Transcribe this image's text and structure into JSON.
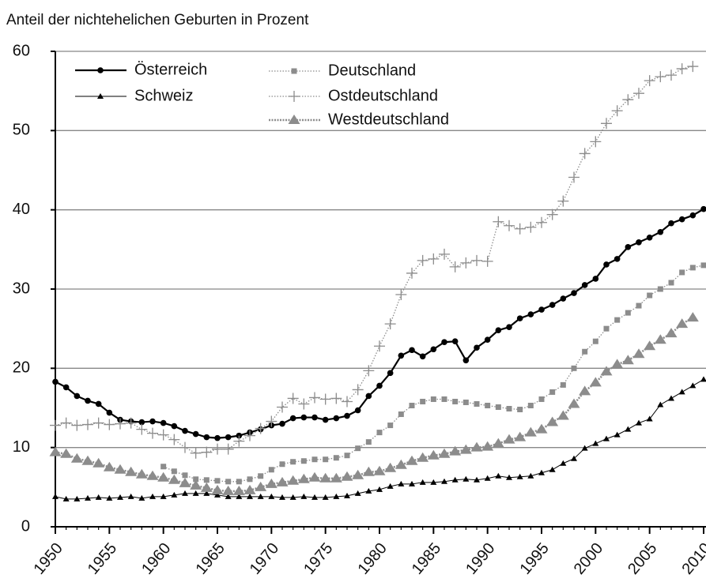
{
  "chart_data": {
    "type": "line",
    "title": "Anteil der nichtehelichen Geburten in Prozent",
    "x": [
      1950,
      1951,
      1952,
      1953,
      1954,
      1955,
      1956,
      1957,
      1958,
      1959,
      1960,
      1961,
      1962,
      1963,
      1964,
      1965,
      1966,
      1967,
      1968,
      1969,
      1970,
      1971,
      1972,
      1973,
      1974,
      1975,
      1976,
      1977,
      1978,
      1979,
      1980,
      1981,
      1982,
      1983,
      1984,
      1985,
      1986,
      1987,
      1988,
      1989,
      1990,
      1991,
      1992,
      1993,
      1994,
      1995,
      1996,
      1997,
      1998,
      1999,
      2000,
      2001,
      2002,
      2003,
      2004,
      2005,
      2006,
      2007,
      2008,
      2009,
      2010
    ],
    "xlim": [
      1950,
      2010
    ],
    "xticks": [
      1950,
      1955,
      1960,
      1965,
      1970,
      1975,
      1980,
      1985,
      1990,
      1995,
      2000,
      2005,
      2010
    ],
    "ylim": [
      0,
      60
    ],
    "yticks": [
      0,
      10,
      20,
      30,
      40,
      50,
      60
    ],
    "grid": true,
    "series": [
      {
        "name": "Österreich",
        "color": "#000000",
        "marker": "circle",
        "line": "solid",
        "values": [
          18.3,
          17.6,
          16.5,
          15.9,
          15.5,
          14.4,
          13.5,
          13.3,
          13.2,
          13.3,
          13.1,
          12.7,
          12.1,
          11.7,
          11.3,
          11.2,
          11.3,
          11.5,
          11.9,
          12.3,
          12.8,
          13.0,
          13.7,
          13.8,
          13.8,
          13.5,
          13.7,
          14.0,
          14.7,
          16.5,
          17.8,
          19.4,
          21.6,
          22.3,
          21.5,
          22.4,
          23.3,
          23.4,
          21.0,
          22.6,
          23.6,
          24.8,
          25.2,
          26.3,
          26.8,
          27.4,
          28.0,
          28.8,
          29.5,
          30.5,
          31.3,
          33.1,
          33.8,
          35.3,
          35.9,
          36.5,
          37.2,
          38.3,
          38.8,
          39.3,
          40.1
        ]
      },
      {
        "name": "Schweiz",
        "color": "#000000",
        "marker": "triangle",
        "line": "thin",
        "values": [
          3.8,
          3.5,
          3.5,
          3.6,
          3.7,
          3.6,
          3.7,
          3.8,
          3.6,
          3.8,
          3.8,
          4.0,
          4.2,
          4.2,
          4.2,
          4.0,
          3.8,
          3.8,
          3.8,
          3.8,
          3.8,
          3.7,
          3.7,
          3.8,
          3.7,
          3.7,
          3.8,
          3.9,
          4.2,
          4.5,
          4.7,
          5.1,
          5.4,
          5.4,
          5.6,
          5.6,
          5.7,
          5.9,
          6.0,
          5.9,
          6.1,
          6.4,
          6.2,
          6.3,
          6.4,
          6.8,
          7.2,
          8.0,
          8.6,
          9.9,
          10.5,
          11.1,
          11.6,
          12.3,
          13.1,
          13.6,
          15.4,
          16.2,
          17.0,
          17.8,
          18.6
        ]
      },
      {
        "name": "Deutschland",
        "color": "#8c8c8c",
        "marker": "square",
        "line": "dotted",
        "values": [
          null,
          null,
          null,
          null,
          null,
          null,
          null,
          null,
          null,
          null,
          7.6,
          7.0,
          6.5,
          6.0,
          5.9,
          5.8,
          5.7,
          5.7,
          6.0,
          6.4,
          7.2,
          7.9,
          8.2,
          8.3,
          8.5,
          8.5,
          8.7,
          9.0,
          9.9,
          10.7,
          11.9,
          12.8,
          14.2,
          15.3,
          15.8,
          16.1,
          16.1,
          15.8,
          15.7,
          15.5,
          15.3,
          15.1,
          14.9,
          14.8,
          15.3,
          16.1,
          17.0,
          17.9,
          20.0,
          22.1,
          23.4,
          25.0,
          26.1,
          27.0,
          27.9,
          29.2,
          30.0,
          30.8,
          32.1,
          32.7,
          33.0
        ]
      },
      {
        "name": "Ostdeutschland",
        "color": "#8c8c8c",
        "marker": "plus",
        "line": "dotted",
        "values": [
          12.8,
          13.1,
          12.8,
          12.9,
          13.1,
          12.9,
          13.0,
          13.1,
          12.3,
          11.8,
          11.6,
          11.0,
          10.0,
          9.3,
          9.4,
          9.8,
          9.8,
          10.8,
          11.5,
          12.4,
          13.3,
          15.1,
          16.2,
          15.5,
          16.3,
          16.1,
          16.2,
          15.8,
          17.3,
          19.7,
          22.8,
          25.6,
          29.3,
          32.0,
          33.6,
          33.8,
          34.4,
          32.8,
          33.3,
          33.6,
          33.5,
          38.5,
          38.0,
          37.6,
          37.8,
          38.4,
          39.4,
          41.1,
          44.1,
          47.1,
          48.6,
          50.9,
          52.5,
          53.9,
          54.7,
          56.3,
          56.8,
          57.0,
          57.8,
          58.1,
          null
        ]
      },
      {
        "name": "Westdeutschland",
        "color": "#8c8c8c",
        "marker": "bigtriangle",
        "line": "dashed",
        "values": [
          9.4,
          9.2,
          8.6,
          8.3,
          8.0,
          7.5,
          7.2,
          6.9,
          6.6,
          6.4,
          6.2,
          5.9,
          5.5,
          5.2,
          4.9,
          4.6,
          4.5,
          4.5,
          4.6,
          5.0,
          5.4,
          5.6,
          5.8,
          6.0,
          6.2,
          6.1,
          6.1,
          6.3,
          6.5,
          6.9,
          7.0,
          7.4,
          7.8,
          8.3,
          8.7,
          9.0,
          9.2,
          9.5,
          9.7,
          10.0,
          10.1,
          10.5,
          11.0,
          11.3,
          11.9,
          12.3,
          13.2,
          14.0,
          15.5,
          17.1,
          18.2,
          19.6,
          20.5,
          21.0,
          21.8,
          22.8,
          23.6,
          24.4,
          25.6,
          26.4,
          null
        ]
      }
    ]
  }
}
